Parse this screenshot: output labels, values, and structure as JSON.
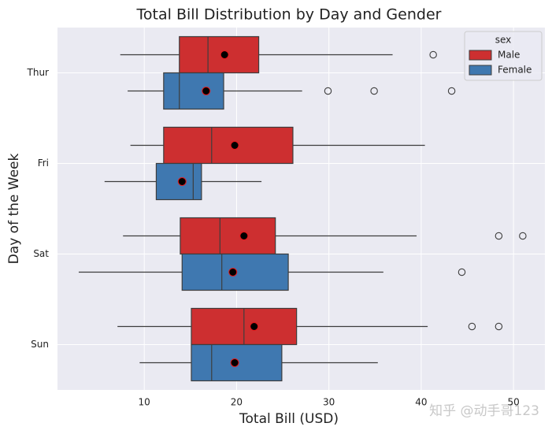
{
  "chart_data": {
    "type": "boxplot",
    "title": "Total Bill Distribution by Day and Gender",
    "x_label": "Total Bill (USD)",
    "y_label": "Day of the Week",
    "categories": [
      "Thur",
      "Fri",
      "Sat",
      "Sun"
    ],
    "legend_title": "sex",
    "legend_position": "upper right",
    "grid": true,
    "xlim": [
      0.6,
      53.4
    ],
    "xticks": [
      10,
      20,
      30,
      40,
      50
    ],
    "series": [
      {
        "name": "Male",
        "color": "#cd2f30",
        "stats": [
          {
            "min": 7.4,
            "q1": 13.8,
            "median": 16.9,
            "q3": 22.4,
            "max": 36.9,
            "mean": 18.7,
            "outliers": [
              41.3
            ]
          },
          {
            "min": 8.5,
            "q1": 12.1,
            "median": 17.3,
            "q3": 26.1,
            "max": 40.4,
            "mean": 19.8,
            "outliers": []
          },
          {
            "min": 7.7,
            "q1": 13.9,
            "median": 18.2,
            "q3": 24.2,
            "max": 39.5,
            "mean": 20.8,
            "outliers": [
              48.4,
              51.0
            ]
          },
          {
            "min": 7.1,
            "q1": 15.1,
            "median": 20.8,
            "q3": 26.5,
            "max": 40.7,
            "mean": 21.9,
            "outliers": [
              45.5,
              48.4
            ]
          }
        ]
      },
      {
        "name": "Female",
        "color": "#3f78b0",
        "stats": [
          {
            "min": 8.2,
            "q1": 12.1,
            "median": 13.8,
            "q3": 18.6,
            "max": 27.1,
            "mean": 16.7,
            "outliers": [
              29.9,
              34.9,
              43.3
            ]
          },
          {
            "min": 5.7,
            "q1": 11.3,
            "median": 15.3,
            "q3": 16.2,
            "max": 22.7,
            "mean": 14.1,
            "outliers": []
          },
          {
            "min": 2.9,
            "q1": 14.1,
            "median": 18.4,
            "q3": 25.6,
            "max": 35.9,
            "mean": 19.6,
            "outliers": [
              44.4
            ]
          },
          {
            "min": 9.5,
            "q1": 15.1,
            "median": 17.3,
            "q3": 24.9,
            "max": 35.3,
            "mean": 19.8,
            "outliers": []
          }
        ]
      }
    ],
    "watermark": "知乎 @动手哥123"
  }
}
